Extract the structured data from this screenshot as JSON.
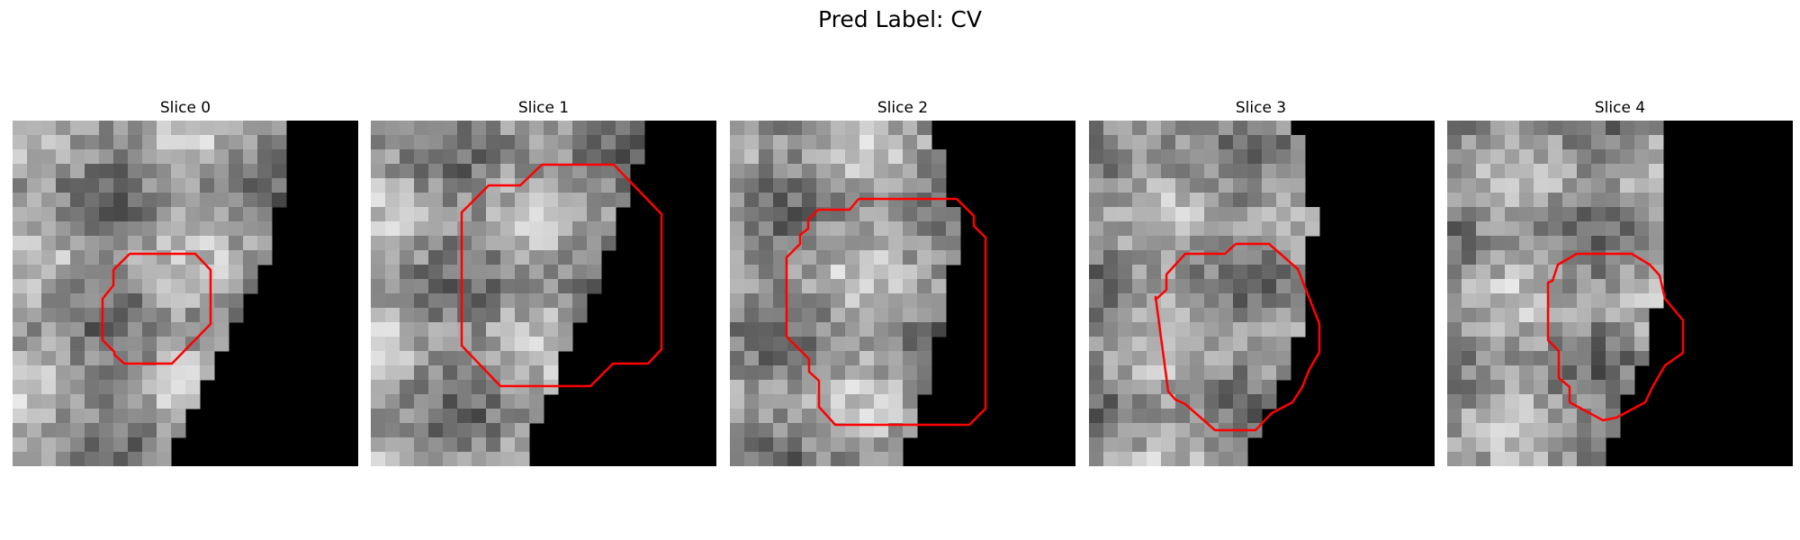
{
  "figure": {
    "title": "Pred Label: CV"
  },
  "slices": [
    {
      "title": "Slice 0",
      "seed": 11,
      "tissue_right_edge": [
        0.81,
        0.8,
        0.78,
        0.76,
        0.73,
        0.69,
        0.65,
        0.6,
        0.55,
        0.5,
        0.45
      ]
    },
    {
      "title": "Slice 1",
      "seed": 23,
      "tissue_right_edge": [
        0.78,
        0.77,
        0.74,
        0.71,
        0.68,
        0.64,
        0.6,
        0.56,
        0.52,
        0.48,
        0.45
      ]
    },
    {
      "title": "Slice 2",
      "seed": 37,
      "tissue_right_edge": [
        0.59,
        0.61,
        0.63,
        0.66,
        0.65,
        0.63,
        0.61,
        0.59,
        0.56,
        0.53,
        0.5
      ]
    },
    {
      "title": "Slice 3",
      "seed": 41,
      "tissue_right_edge": [
        0.6,
        0.63,
        0.64,
        0.65,
        0.64,
        0.63,
        0.61,
        0.59,
        0.55,
        0.5,
        0.45
      ]
    },
    {
      "title": "Slice 4",
      "seed": 53,
      "tissue_right_edge": [
        0.63,
        0.64,
        0.64,
        0.64,
        0.63,
        0.61,
        0.59,
        0.57,
        0.53,
        0.49,
        0.45
      ]
    }
  ],
  "contour_color": "#ff0000"
}
